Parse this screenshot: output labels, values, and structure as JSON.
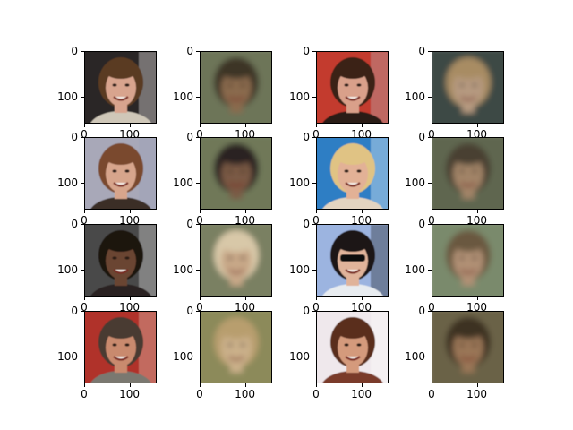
{
  "figure": {
    "rows": 4,
    "cols": 4,
    "x_ticks": [
      "0",
      "100"
    ],
    "y_ticks": [
      "0",
      "100"
    ],
    "panels": [
      {
        "kind": "photo",
        "subject": "smiling woman with dark hair pulled back",
        "bg": "#2a2626",
        "skin": "#d8a48e",
        "hair": "#5a3a22",
        "shirt": "#cfc7b8",
        "accent": "#ffffff"
      },
      {
        "kind": "generated",
        "subject": "blurry generated face",
        "bg": "#6d7558",
        "skin": "#8a6a4e",
        "hair": "#3e3526"
      },
      {
        "kind": "photo",
        "subject": "smiling woman with long curly brown hair",
        "bg": "#c33a2e",
        "skin": "#d9a08a",
        "hair": "#3a2418",
        "shirt": "#2a1d18",
        "accent": "#b6bdc4"
      },
      {
        "kind": "generated",
        "subject": "blurry generated face with light hair",
        "bg": "#3e4a44",
        "skin": "#b69a80",
        "hair": "#a88c64"
      },
      {
        "kind": "photo",
        "subject": "woman with straight auburn hair",
        "bg": "#a8a8b8",
        "skin": "#d7a58c",
        "hair": "#7a4a2e",
        "shirt": "#3a2d26",
        "accent": "#9aa0b6"
      },
      {
        "kind": "generated",
        "subject": "blurry generated face",
        "bg": "#6f7858",
        "skin": "#7a5a44",
        "hair": "#2a2420"
      },
      {
        "kind": "photo",
        "subject": "smiling blonde woman on blue background",
        "bg": "#2f7ec4",
        "skin": "#e2b196",
        "hair": "#e0c384",
        "shirt": "#e3d4c0",
        "accent": "#ffffff"
      },
      {
        "kind": "generated",
        "subject": "blurry generated face",
        "bg": "#5f6650",
        "skin": "#a28468",
        "hair": "#4a4030"
      },
      {
        "kind": "photo",
        "subject": "man with beard against white blinds",
        "bg": "#4a4a4a",
        "skin": "#6a4432",
        "hair": "#1a1410",
        "shirt": "#2a2320",
        "accent": "#e8e8e8"
      },
      {
        "kind": "generated",
        "subject": "blurry generated face with light hair",
        "bg": "#7a8062",
        "skin": "#c8a888",
        "hair": "#d8c8a8"
      },
      {
        "kind": "photo",
        "subject": "man with sunglasses and dark hair",
        "bg": "#9cb4e0",
        "skin": "#e0b39a",
        "hair": "#1c1418",
        "shirt": "#e8ecf0",
        "accent": "#1a1a1a"
      },
      {
        "kind": "generated",
        "subject": "blurry generated face",
        "bg": "#7a8a6c",
        "skin": "#b09074",
        "hair": "#6a5840"
      },
      {
        "kind": "photo",
        "subject": "grinning older man on red background",
        "bg": "#b0302a",
        "skin": "#c98a6e",
        "hair": "#4a3a30",
        "shirt": "#7a7870",
        "accent": "#e6d6c4"
      },
      {
        "kind": "generated",
        "subject": "blurry generated face",
        "bg": "#8c8a5a",
        "skin": "#cbb08a",
        "hair": "#b89e6e"
      },
      {
        "kind": "photo",
        "subject": "smiling woman with long wavy brown hair",
        "bg": "#efe8ec",
        "skin": "#d49a7c",
        "hair": "#5a2e1c",
        "shirt": "#7a3a2c",
        "accent": "#ffffff"
      },
      {
        "kind": "generated",
        "subject": "blurry generated face",
        "bg": "#6a6246",
        "skin": "#9a7656",
        "hair": "#3c3224"
      }
    ]
  }
}
